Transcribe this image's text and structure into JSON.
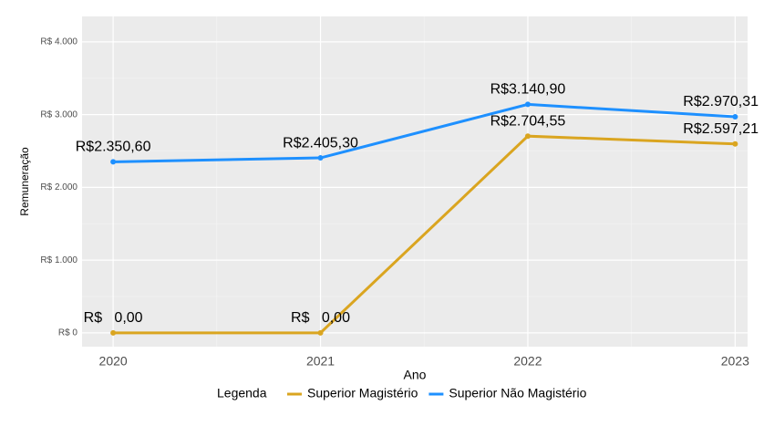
{
  "chart_data": {
    "type": "line",
    "x_label": "Ano",
    "y_label": "Remuneração",
    "legend_title": "Legenda",
    "legend_position": "bottom",
    "x": [
      2020,
      2021,
      2022,
      2023
    ],
    "series": [
      {
        "name": "Superior Magistério",
        "color": "#DAA520",
        "values": [
          0,
          0,
          2704.55,
          2597.21
        ],
        "value_labels": [
          "R$   0,00",
          "R$   0,00",
          "R$2.704,55",
          "R$2.597,21"
        ]
      },
      {
        "name": "Superior Não Magistério",
        "color": "#1E90FF",
        "values": [
          2350.6,
          2405.3,
          3140.9,
          2970.31
        ],
        "value_labels": [
          "R$2.350,60",
          "R$2.405,30",
          "R$3.140,90",
          "R$2.970,31"
        ]
      }
    ],
    "xlim": [
      2019.85,
      2023.06
    ],
    "xticks": [
      2020,
      2021,
      2022,
      2023
    ],
    "x_minor_ticks": [
      2020.5,
      2021.5,
      2022.5
    ],
    "ylim": [
      -190,
      4350
    ],
    "yticks": [
      {
        "value": 0,
        "label": "R$ 0"
      },
      {
        "value": 1000,
        "label": "R$ 1.000"
      },
      {
        "value": 2000,
        "label": "R$ 2.000"
      },
      {
        "value": 3000,
        "label": "R$ 3.000"
      },
      {
        "value": 4000,
        "label": "R$ 4.000"
      }
    ],
    "y_minor_ticks": [
      500,
      1500,
      2500,
      3500
    ],
    "grid": true
  }
}
